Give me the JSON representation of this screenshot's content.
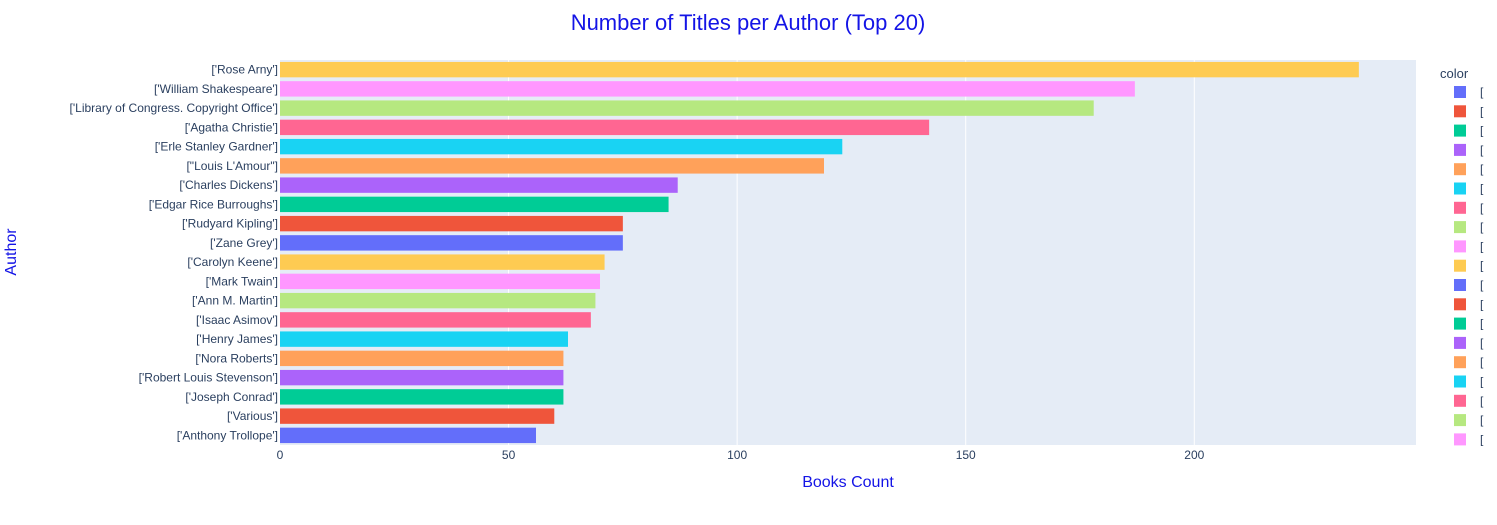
{
  "chart_data": {
    "type": "bar",
    "orientation": "horizontal",
    "title": "Number of Titles per Author (Top 20)",
    "xlabel": "Books Count",
    "ylabel": "Author",
    "xlim": [
      0,
      248.5
    ],
    "xticks": [
      0,
      50,
      100,
      150,
      200
    ],
    "grid": true,
    "legend_title": "color",
    "legend_position": "right",
    "plot_bgcolor": "#e5ecf6",
    "categories": [
      "['Rose Arny']",
      "['William Shakespeare']",
      "['Library of Congress. Copyright Office']",
      "['Agatha Christie']",
      "['Erle Stanley Gardner']",
      "[\"Louis L'Amour\"]",
      "['Charles Dickens']",
      "['Edgar Rice Burroughs']",
      "['Rudyard Kipling']",
      "['Zane Grey']",
      "['Carolyn Keene']",
      "['Mark Twain']",
      "['Ann M. Martin']",
      "['Isaac Asimov']",
      "['Henry James']",
      "['Nora Roberts']",
      "['Robert Louis Stevenson']",
      "['Joseph Conrad']",
      "['Various']",
      "['Anthony Trollope']"
    ],
    "values": [
      236,
      187,
      178,
      142,
      123,
      119,
      87,
      85,
      75,
      75,
      71,
      70,
      69,
      68,
      63,
      62,
      62,
      62,
      60,
      56
    ],
    "colors": [
      "#FECB52",
      "#FF97FF",
      "#B6E880",
      "#FF6692",
      "#19D3F3",
      "#FFA15A",
      "#AB63FA",
      "#00CC96",
      "#EF553B",
      "#636EFA",
      "#FECB52",
      "#FF97FF",
      "#B6E880",
      "#FF6692",
      "#19D3F3",
      "#FFA15A",
      "#AB63FA",
      "#00CC96",
      "#EF553B",
      "#636EFA"
    ],
    "legend_colors": [
      "#636EFA",
      "#EF553B",
      "#00CC96",
      "#AB63FA",
      "#FFA15A",
      "#19D3F3",
      "#FF6692",
      "#B6E880",
      "#FF97FF",
      "#FECB52",
      "#636EFA",
      "#EF553B",
      "#00CC96",
      "#AB63FA",
      "#FFA15A",
      "#19D3F3",
      "#FF6692",
      "#B6E880",
      "#FF97FF"
    ],
    "legend_labels": [
      "[",
      "[",
      "[",
      "[",
      "[",
      "[",
      "[",
      "[",
      "[",
      "[",
      "[",
      "[",
      "[",
      "[",
      "[",
      "[",
      "[",
      "[",
      "["
    ]
  }
}
